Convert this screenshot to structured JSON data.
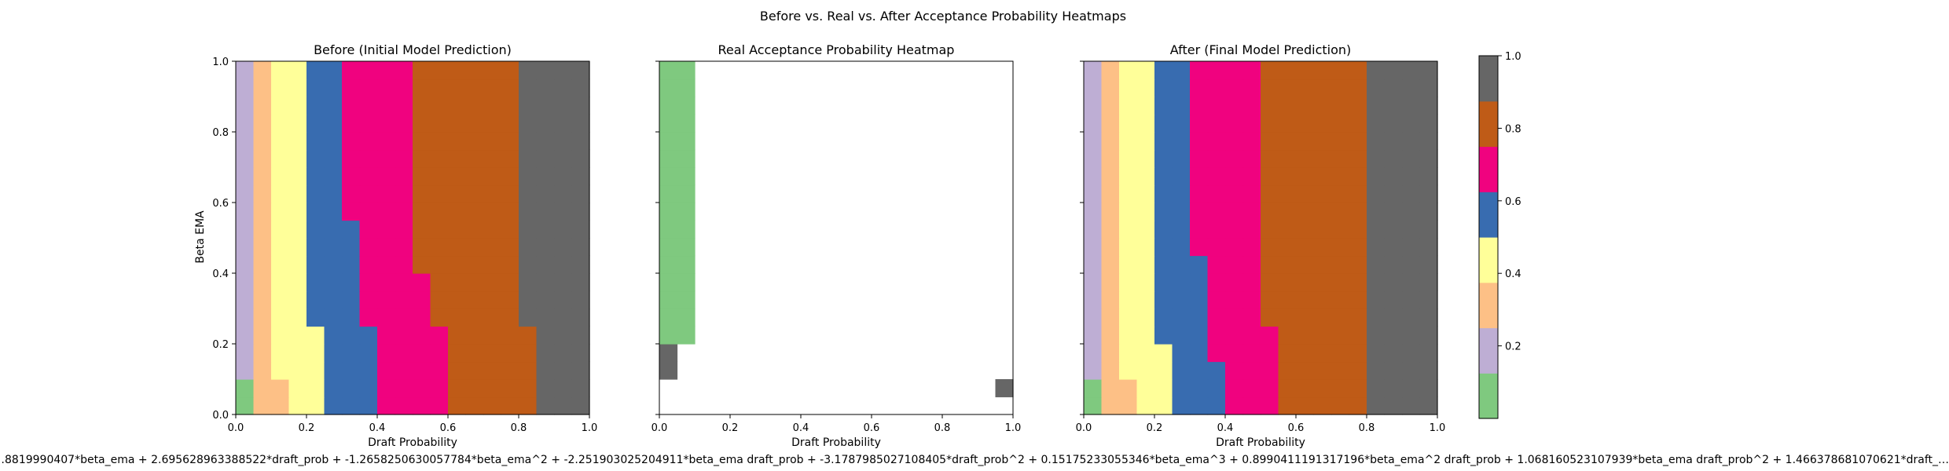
{
  "figure_title": "Before vs. Real vs. After Acceptance Probability Heatmaps",
  "footer_formula": "…8819990407*beta_ema + 2.695628963388522*draft_prob + -1.2658250630057784*beta_ema^2 + -2.251903025204911*beta_ema draft_prob + -3.1787985027108405*draft_prob^2 + 0.15175233055346*beta_ema^3 + 0.8990411191317196*beta_ema^2 draft_prob + 1.068160523107939*beta_ema draft_prob^2 + 1.466378681070621*draft_…",
  "chart_data": [
    {
      "type": "heatmap",
      "title": "Before (Initial Model Prediction)",
      "xlabel": "Draft Probability",
      "ylabel": "Beta EMA",
      "xlim": [
        0,
        1
      ],
      "ylim": [
        0,
        1
      ],
      "xticks": [
        "0.0",
        "0.2",
        "0.4",
        "0.6",
        "0.8",
        "1.0"
      ],
      "yticks": [
        "0.0",
        "0.2",
        "0.4",
        "0.6",
        "0.8",
        "1.0"
      ],
      "grid_size": 20,
      "bin_edges": [
        0.125,
        0.25,
        0.375,
        0.5,
        0.625,
        0.75,
        0.875
      ],
      "boundaries_note": "grid values sampled from fitted polynomial; rows bottom to top, columns left to right",
      "boundaries": [
        [
          1,
          3,
          5,
          8,
          12,
          17
        ],
        [
          1,
          3,
          5,
          8,
          12,
          17
        ],
        [
          1,
          2,
          5,
          8,
          12,
          17
        ],
        [
          1,
          2,
          5,
          8,
          12,
          17
        ],
        [
          1,
          2,
          5,
          8,
          12,
          17
        ],
        [
          1,
          2,
          4,
          7,
          11,
          16
        ],
        [
          1,
          2,
          4,
          7,
          11,
          16
        ],
        [
          1,
          2,
          4,
          7,
          11,
          16
        ],
        [
          1,
          2,
          4,
          7,
          10,
          16
        ],
        [
          1,
          2,
          4,
          7,
          10,
          16
        ],
        [
          1,
          2,
          4,
          7,
          10,
          16
        ],
        [
          1,
          2,
          4,
          6,
          10,
          16
        ],
        [
          1,
          2,
          4,
          6,
          10,
          16
        ],
        [
          1,
          2,
          4,
          6,
          10,
          16
        ],
        [
          1,
          2,
          4,
          6,
          10,
          16
        ],
        [
          1,
          2,
          4,
          6,
          10,
          16
        ],
        [
          1,
          2,
          4,
          6,
          10,
          16
        ],
        [
          1,
          2,
          4,
          6,
          10,
          16
        ],
        [
          1,
          2,
          4,
          6,
          10,
          16
        ],
        [
          1,
          2,
          4,
          6,
          10,
          16
        ]
      ]
    },
    {
      "type": "heatmap",
      "title": "Real Acceptance Probability Heatmap",
      "xlabel": "Draft Probability",
      "ylabel": "",
      "xlim": [
        0,
        1
      ],
      "ylim": [
        0,
        1
      ],
      "xticks": [
        "0.0",
        "0.2",
        "0.4",
        "0.6",
        "0.8",
        "1.0"
      ],
      "yticks": [
        "0.0",
        "0.2",
        "0.4",
        "0.6",
        "0.8",
        "1.0"
      ],
      "grid_size": 20,
      "missing_color": "#ffffff",
      "grid_note": "0-7 = colour bin, -1 = empty (white); rows bottom to top",
      "grid": [
        [
          -1,
          -1,
          -1,
          -1,
          -1,
          -1,
          -1,
          -1,
          -1,
          -1,
          -1,
          -1,
          -1,
          -1,
          -1,
          -1,
          -1,
          -1,
          -1,
          -1
        ],
        [
          -1,
          -1,
          -1,
          -1,
          -1,
          -1,
          -1,
          -1,
          -1,
          -1,
          -1,
          -1,
          -1,
          -1,
          -1,
          -1,
          -1,
          -1,
          -1,
          7
        ],
        [
          7,
          -1,
          -1,
          -1,
          -1,
          -1,
          -1,
          -1,
          -1,
          -1,
          -1,
          -1,
          -1,
          -1,
          -1,
          -1,
          -1,
          -1,
          -1,
          -1
        ],
        [
          7,
          -1,
          -1,
          -1,
          -1,
          -1,
          -1,
          -1,
          -1,
          -1,
          -1,
          -1,
          -1,
          -1,
          -1,
          -1,
          -1,
          -1,
          -1,
          -1
        ],
        [
          0,
          0,
          -1,
          -1,
          -1,
          -1,
          -1,
          -1,
          -1,
          -1,
          -1,
          -1,
          -1,
          -1,
          -1,
          -1,
          -1,
          -1,
          -1,
          -1
        ],
        [
          0,
          0,
          -1,
          -1,
          -1,
          -1,
          -1,
          -1,
          -1,
          -1,
          -1,
          -1,
          -1,
          -1,
          -1,
          -1,
          -1,
          -1,
          -1,
          -1
        ],
        [
          0,
          0,
          -1,
          -1,
          -1,
          -1,
          -1,
          -1,
          -1,
          -1,
          -1,
          -1,
          -1,
          -1,
          -1,
          -1,
          -1,
          -1,
          -1,
          -1
        ],
        [
          0,
          0,
          -1,
          -1,
          -1,
          -1,
          -1,
          -1,
          -1,
          -1,
          -1,
          -1,
          -1,
          -1,
          -1,
          -1,
          -1,
          -1,
          -1,
          -1
        ],
        [
          0,
          0,
          -1,
          -1,
          -1,
          -1,
          -1,
          -1,
          -1,
          -1,
          -1,
          -1,
          -1,
          -1,
          -1,
          -1,
          -1,
          -1,
          -1,
          -1
        ],
        [
          0,
          0,
          -1,
          -1,
          -1,
          -1,
          -1,
          -1,
          -1,
          -1,
          -1,
          -1,
          -1,
          -1,
          -1,
          -1,
          -1,
          -1,
          -1,
          -1
        ],
        [
          0,
          0,
          -1,
          -1,
          -1,
          -1,
          -1,
          -1,
          -1,
          -1,
          -1,
          -1,
          -1,
          -1,
          -1,
          -1,
          -1,
          -1,
          -1,
          -1
        ],
        [
          0,
          0,
          -1,
          -1,
          -1,
          -1,
          -1,
          -1,
          -1,
          -1,
          -1,
          -1,
          -1,
          -1,
          -1,
          -1,
          -1,
          -1,
          -1,
          -1
        ],
        [
          0,
          0,
          -1,
          -1,
          -1,
          -1,
          -1,
          -1,
          -1,
          -1,
          -1,
          -1,
          -1,
          -1,
          -1,
          -1,
          -1,
          -1,
          -1,
          -1
        ],
        [
          0,
          0,
          -1,
          -1,
          -1,
          -1,
          -1,
          -1,
          -1,
          -1,
          -1,
          -1,
          -1,
          -1,
          -1,
          -1,
          -1,
          -1,
          -1,
          -1
        ],
        [
          0,
          0,
          -1,
          -1,
          -1,
          -1,
          -1,
          -1,
          -1,
          -1,
          -1,
          -1,
          -1,
          -1,
          -1,
          -1,
          -1,
          -1,
          -1,
          -1
        ],
        [
          0,
          0,
          -1,
          -1,
          -1,
          -1,
          -1,
          -1,
          -1,
          -1,
          -1,
          -1,
          -1,
          -1,
          -1,
          -1,
          -1,
          -1,
          -1,
          -1
        ],
        [
          0,
          0,
          -1,
          -1,
          -1,
          -1,
          -1,
          -1,
          -1,
          -1,
          -1,
          -1,
          -1,
          -1,
          -1,
          -1,
          -1,
          -1,
          -1,
          -1
        ],
        [
          0,
          0,
          -1,
          -1,
          -1,
          -1,
          -1,
          -1,
          -1,
          -1,
          -1,
          -1,
          -1,
          -1,
          -1,
          -1,
          -1,
          -1,
          -1,
          -1
        ],
        [
          0,
          0,
          -1,
          -1,
          -1,
          -1,
          -1,
          -1,
          -1,
          -1,
          -1,
          -1,
          -1,
          -1,
          -1,
          -1,
          -1,
          -1,
          -1,
          -1
        ],
        [
          0,
          0,
          -1,
          -1,
          -1,
          -1,
          -1,
          -1,
          -1,
          -1,
          -1,
          -1,
          -1,
          -1,
          -1,
          -1,
          -1,
          -1,
          -1,
          -1
        ]
      ]
    },
    {
      "type": "heatmap",
      "title": "After (Final Model Prediction)",
      "xlabel": "Draft Probability",
      "ylabel": "",
      "xlim": [
        0,
        1
      ],
      "ylim": [
        0,
        1
      ],
      "xticks": [
        "0.0",
        "0.2",
        "0.4",
        "0.6",
        "0.8",
        "1.0"
      ],
      "yticks": [
        "0.0",
        "0.2",
        "0.4",
        "0.6",
        "0.8",
        "1.0"
      ],
      "grid_size": 20,
      "boundaries_note": "column index where each colour bin ends; rows bottom to top",
      "boundaries": [
        [
          1,
          3,
          5,
          8,
          11,
          16
        ],
        [
          1,
          3,
          5,
          8,
          11,
          16
        ],
        [
          1,
          2,
          5,
          8,
          11,
          16
        ],
        [
          1,
          2,
          5,
          7,
          11,
          16
        ],
        [
          1,
          2,
          4,
          7,
          11,
          16
        ],
        [
          1,
          2,
          4,
          7,
          10,
          16
        ],
        [
          1,
          2,
          4,
          7,
          10,
          16
        ],
        [
          1,
          2,
          4,
          7,
          10,
          16
        ],
        [
          1,
          2,
          4,
          7,
          10,
          16
        ],
        [
          1,
          2,
          4,
          6,
          10,
          16
        ],
        [
          1,
          2,
          4,
          6,
          10,
          16
        ],
        [
          1,
          2,
          4,
          6,
          10,
          16
        ],
        [
          1,
          2,
          4,
          6,
          10,
          16
        ],
        [
          1,
          2,
          4,
          6,
          10,
          16
        ],
        [
          1,
          2,
          4,
          6,
          10,
          16
        ],
        [
          1,
          2,
          4,
          6,
          10,
          16
        ],
        [
          1,
          2,
          4,
          6,
          10,
          16
        ],
        [
          1,
          2,
          4,
          6,
          10,
          16
        ],
        [
          1,
          2,
          4,
          6,
          10,
          16
        ],
        [
          1,
          2,
          4,
          6,
          10,
          16
        ]
      ]
    }
  ],
  "colorbar": {
    "colors": [
      "#7fc97f",
      "#beaed4",
      "#fdc086",
      "#ffff99",
      "#386cb0",
      "#f0027f",
      "#bf5b17",
      "#666666"
    ],
    "ticks": [
      "0.2",
      "0.4",
      "0.6",
      "0.8",
      "1.0"
    ],
    "tick_values": [
      0.2,
      0.4,
      0.6,
      0.8,
      1.0
    ],
    "range": [
      0.0,
      1.0
    ]
  }
}
